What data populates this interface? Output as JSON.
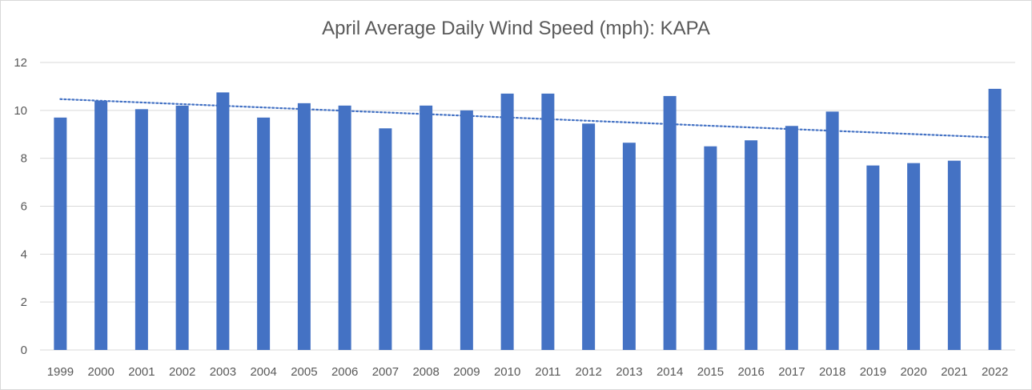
{
  "chart_data": {
    "type": "bar",
    "title": "April Average Daily Wind Speed (mph): KAPA",
    "xlabel": "",
    "ylabel": "",
    "categories": [
      "1999",
      "2000",
      "2001",
      "2002",
      "2003",
      "2004",
      "2005",
      "2006",
      "2007",
      "2008",
      "2009",
      "2010",
      "2011",
      "2012",
      "2013",
      "2014",
      "2015",
      "2016",
      "2017",
      "2018",
      "2019",
      "2020",
      "2021",
      "2022"
    ],
    "values": [
      9.7,
      10.4,
      10.05,
      10.2,
      10.75,
      9.7,
      10.3,
      10.2,
      9.25,
      10.2,
      10.0,
      10.7,
      10.7,
      9.45,
      8.65,
      10.6,
      8.5,
      8.75,
      9.35,
      9.95,
      7.7,
      7.8,
      7.9,
      10.9
    ],
    "ylim": [
      0,
      12
    ],
    "yticks": [
      0,
      2,
      4,
      6,
      8,
      10,
      12
    ],
    "grid": true,
    "legend": "none",
    "trendline": {
      "type": "linear",
      "style": "dotted",
      "start": 10.47,
      "end": 8.87
    },
    "colors": {
      "bar": "#4472C4",
      "trend": "#4472C4",
      "grid": "#d9d9d9"
    }
  }
}
